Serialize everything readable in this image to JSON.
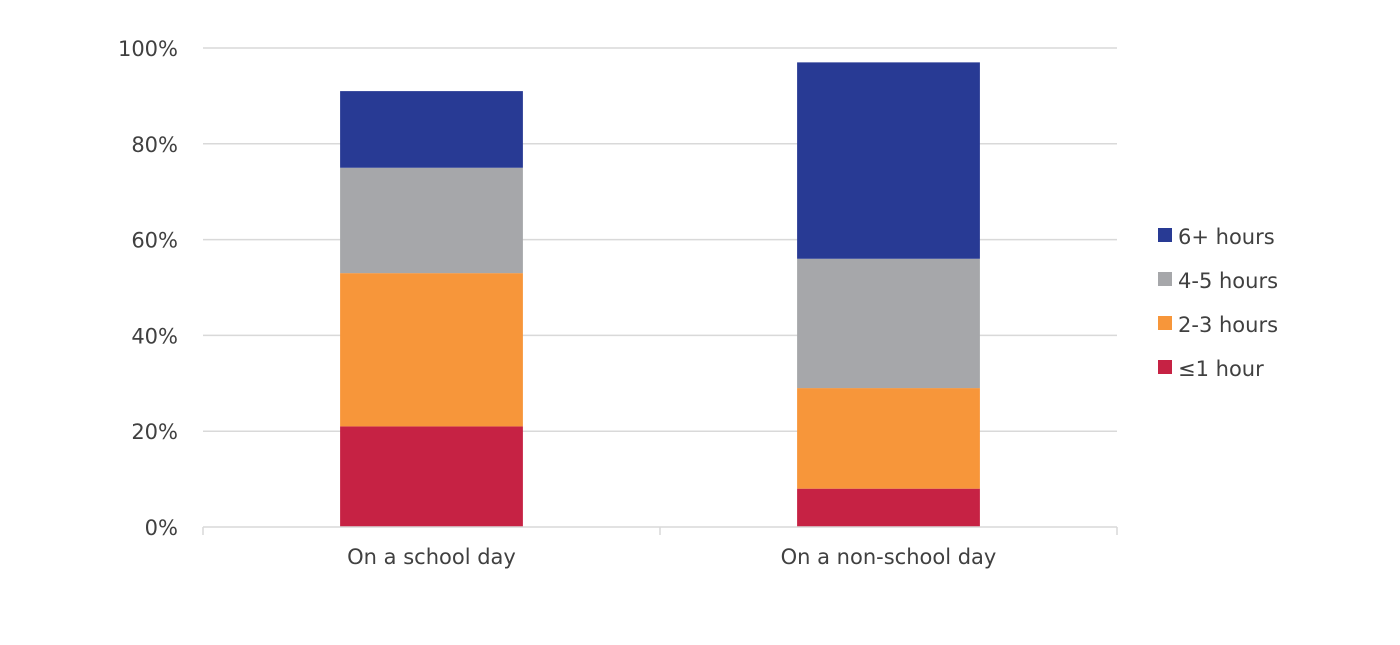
{
  "chart_data": {
    "type": "bar",
    "stacked": true,
    "title": "",
    "xlabel": "",
    "ylabel": "",
    "categories": [
      "On a school day",
      "On a non-school day"
    ],
    "series": [
      {
        "name": "≤1 hour",
        "color": "#c62244",
        "values": [
          21,
          8
        ]
      },
      {
        "name": "2-3 hours",
        "color": "#f7963a",
        "values": [
          32,
          21
        ]
      },
      {
        "name": "4-5 hours",
        "color": "#a6a7aa",
        "values": [
          22,
          27
        ]
      },
      {
        "name": "6+ hours",
        "color": "#283a94",
        "values": [
          16,
          41
        ]
      }
    ],
    "ylim": [
      0,
      100
    ],
    "yticks": [
      "0%",
      "20%",
      "40%",
      "60%",
      "80%",
      "100%"
    ],
    "ytick_values": [
      0,
      20,
      40,
      60,
      80,
      100
    ],
    "grid": true,
    "legend_position": "right",
    "legend_order": [
      "6+ hours",
      "4-5 hours",
      "2-3 hours",
      "≤1 hour"
    ]
  }
}
